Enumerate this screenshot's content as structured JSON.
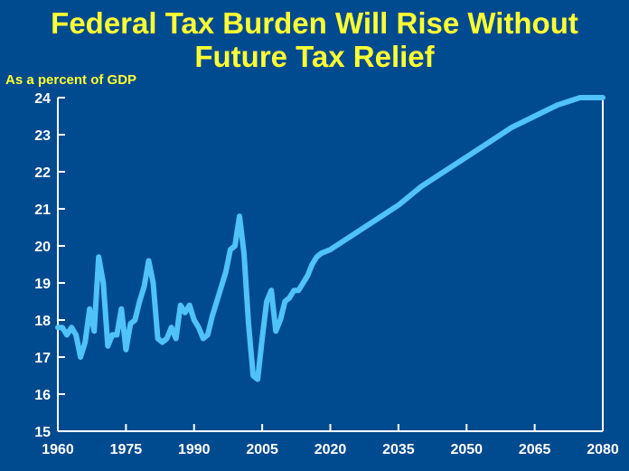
{
  "chart_data": {
    "type": "line",
    "title_lines": [
      "Federal Tax Burden Will Rise Without",
      "Future Tax Relief"
    ],
    "ylabel": "As a percent of GDP",
    "xlabel": "",
    "ylim": [
      15,
      24
    ],
    "xlim": [
      1960,
      2080
    ],
    "yticks": [
      15,
      16,
      17,
      18,
      19,
      20,
      21,
      22,
      23,
      24
    ],
    "xticks": [
      1960,
      1975,
      1990,
      2005,
      2020,
      2035,
      2050,
      2065,
      2080
    ],
    "grid": false,
    "series": [
      {
        "color": "#4fc3f7",
        "x": [
          1960,
          1961,
          1962,
          1963,
          1964,
          1965,
          1966,
          1967,
          1968,
          1969,
          1970,
          1971,
          1972,
          1973,
          1974,
          1975,
          1976,
          1977,
          1978,
          1979,
          1980,
          1981,
          1982,
          1983,
          1984,
          1985,
          1986,
          1987,
          1988,
          1989,
          1990,
          1991,
          1992,
          1993,
          1994,
          1995,
          1996,
          1997,
          1998,
          1999,
          2000,
          2001,
          2002,
          2003,
          2004,
          2005,
          2006,
          2007,
          2008,
          2009,
          2010,
          2011,
          2012,
          2013,
          2014,
          2015,
          2016,
          2017,
          2018,
          2020,
          2025,
          2030,
          2035,
          2040,
          2045,
          2050,
          2055,
          2060,
          2065,
          2070,
          2075,
          2080
        ],
        "y": [
          17.8,
          17.8,
          17.6,
          17.8,
          17.6,
          17.0,
          17.4,
          18.3,
          17.7,
          19.7,
          19.0,
          17.3,
          17.6,
          17.6,
          18.3,
          17.2,
          17.9,
          18.0,
          18.5,
          18.9,
          19.6,
          19.0,
          17.5,
          17.4,
          17.5,
          17.8,
          17.5,
          18.4,
          18.2,
          18.4,
          18.0,
          17.8,
          17.5,
          17.6,
          18.1,
          18.5,
          18.9,
          19.3,
          19.9,
          20.0,
          20.8,
          19.8,
          17.9,
          16.5,
          16.4,
          17.5,
          18.5,
          18.8,
          17.7,
          18.0,
          18.5,
          18.6,
          18.8,
          18.8,
          19.0,
          19.2,
          19.5,
          19.7,
          19.8,
          19.9,
          20.3,
          20.7,
          21.1,
          21.6,
          22.0,
          22.4,
          22.8,
          23.2,
          23.5,
          23.8,
          24.0,
          24.0
        ]
      }
    ]
  }
}
